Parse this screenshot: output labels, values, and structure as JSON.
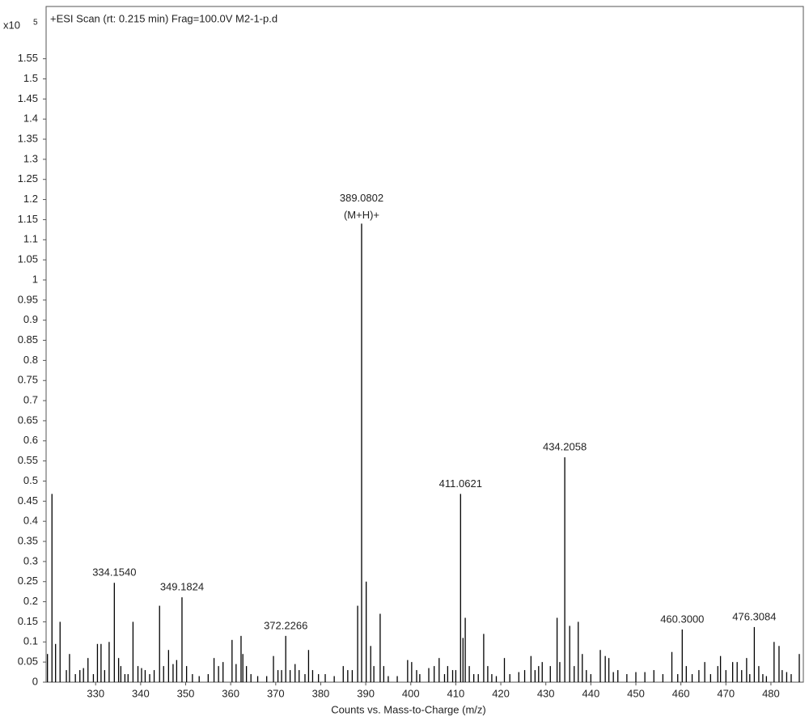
{
  "chart_data": {
    "type": "stem",
    "title": "+ESI Scan (rt: 0.215 min) Frag=100.0V M2-1-p.d",
    "y_multiplier": "x10",
    "y_exponent": "5",
    "xlabel": "Counts vs. Mass-to-Charge (m/z)",
    "color": "#000000",
    "xlim": [
      319,
      487.2
    ],
    "ylim": [
      0,
      1.68
    ],
    "xticks": [
      330,
      340,
      350,
      360,
      370,
      380,
      390,
      400,
      410,
      420,
      430,
      440,
      450,
      460,
      470,
      480
    ],
    "yticks": [
      0,
      0.05,
      0.1,
      0.15,
      0.2,
      0.25,
      0.3,
      0.35,
      0.4,
      0.45,
      0.5,
      0.55,
      0.6,
      0.65,
      0.7,
      0.75,
      0.8,
      0.85,
      0.9,
      0.95,
      1,
      1.05,
      1.1,
      1.15,
      1.2,
      1.25,
      1.3,
      1.35,
      1.4,
      1.45,
      1.5,
      1.55
    ],
    "x": [
      319.3,
      320.3,
      321.1,
      322.1,
      323.5,
      324.2,
      325.5,
      326.5,
      327.3,
      328.3,
      329.5,
      330.4,
      331.2,
      332.0,
      333.0,
      334.154,
      335.1,
      335.6,
      336.5,
      337.2,
      338.3,
      339.4,
      340.2,
      341.0,
      342.0,
      343.0,
      344.2,
      345.1,
      346.2,
      347.2,
      348.0,
      349.1824,
      350.2,
      351.5,
      353.0,
      355.0,
      356.3,
      357.3,
      358.3,
      360.3,
      361.2,
      362.3,
      362.7,
      363.5,
      364.5,
      366.0,
      368.0,
      369.5,
      370.5,
      371.3,
      372.2266,
      373.2,
      374.3,
      375.2,
      376.5,
      377.3,
      378.2,
      379.5,
      381.0,
      383.0,
      385.0,
      386.0,
      387.0,
      388.2,
      389.0802,
      390.1,
      391.1,
      391.8,
      393.2,
      394.0,
      395.0,
      397.0,
      399.3,
      400.2,
      401.3,
      402.0,
      404.0,
      405.2,
      406.3,
      407.5,
      408.2,
      409.3,
      410.0,
      411.0621,
      411.6,
      412.1,
      413.0,
      414.0,
      415.0,
      416.2,
      417.1,
      418.0,
      419.0,
      420.8,
      422.0,
      424.0,
      425.3,
      426.7,
      427.6,
      428.4,
      429.2,
      431.0,
      432.5,
      433.1,
      434.2058,
      435.3,
      436.3,
      437.2,
      438.1,
      439.0,
      440.0,
      442.1,
      443.2,
      444.0,
      445.0,
      446.0,
      448.0,
      450.0,
      452.0,
      454.0,
      456.0,
      458.0,
      459.3,
      460.3,
      461.2,
      462.5,
      464.0,
      465.3,
      466.6,
      468.2,
      468.8,
      470.0,
      471.5,
      472.5,
      473.5,
      474.6,
      475.3,
      476.3084,
      477.3,
      478.2,
      479.0,
      480.7,
      481.8,
      482.5,
      483.5,
      484.5,
      486.3
    ],
    "values": [
      0.07,
      0.468,
      0.095,
      0.15,
      0.03,
      0.07,
      0.02,
      0.03,
      0.035,
      0.06,
      0.02,
      0.095,
      0.095,
      0.03,
      0.1,
      0.247,
      0.06,
      0.04,
      0.02,
      0.02,
      0.15,
      0.04,
      0.035,
      0.03,
      0.02,
      0.03,
      0.19,
      0.04,
      0.08,
      0.045,
      0.055,
      0.211,
      0.04,
      0.02,
      0.015,
      0.02,
      0.06,
      0.04,
      0.05,
      0.105,
      0.045,
      0.115,
      0.07,
      0.04,
      0.02,
      0.015,
      0.015,
      0.065,
      0.03,
      0.03,
      0.115,
      0.03,
      0.045,
      0.03,
      0.02,
      0.08,
      0.03,
      0.02,
      0.02,
      0.015,
      0.04,
      0.03,
      0.03,
      0.19,
      1.14,
      0.25,
      0.09,
      0.04,
      0.17,
      0.04,
      0.015,
      0.015,
      0.055,
      0.05,
      0.03,
      0.02,
      0.035,
      0.04,
      0.06,
      0.02,
      0.04,
      0.03,
      0.03,
      0.468,
      0.11,
      0.16,
      0.04,
      0.02,
      0.02,
      0.12,
      0.04,
      0.02,
      0.015,
      0.06,
      0.02,
      0.025,
      0.03,
      0.065,
      0.03,
      0.04,
      0.05,
      0.04,
      0.16,
      0.05,
      0.559,
      0.14,
      0.04,
      0.15,
      0.07,
      0.03,
      0.02,
      0.08,
      0.065,
      0.06,
      0.025,
      0.03,
      0.02,
      0.025,
      0.025,
      0.03,
      0.02,
      0.075,
      0.02,
      0.131,
      0.04,
      0.02,
      0.03,
      0.05,
      0.02,
      0.04,
      0.065,
      0.03,
      0.05,
      0.05,
      0.03,
      0.06,
      0.02,
      0.137,
      0.04,
      0.02,
      0.015,
      0.1,
      0.09,
      0.03,
      0.025,
      0.02,
      0.07
    ],
    "annotations": [
      {
        "text": "334.1540",
        "x": 334.154,
        "y": 0.247
      },
      {
        "text": "349.1824",
        "x": 349.1824,
        "y": 0.211
      },
      {
        "text": "372.2266",
        "x": 372.2266,
        "y": 0.115
      },
      {
        "text": "389.0802",
        "subtext": "(M+H)+",
        "x": 389.0802,
        "y": 1.14
      },
      {
        "text": "411.0621",
        "x": 411.0621,
        "y": 0.468
      },
      {
        "text": "434.2058",
        "x": 434.2058,
        "y": 0.559
      },
      {
        "text": "460.3000",
        "x": 460.3,
        "y": 0.131
      },
      {
        "text": "476.3084",
        "x": 476.3084,
        "y": 0.137
      }
    ]
  }
}
